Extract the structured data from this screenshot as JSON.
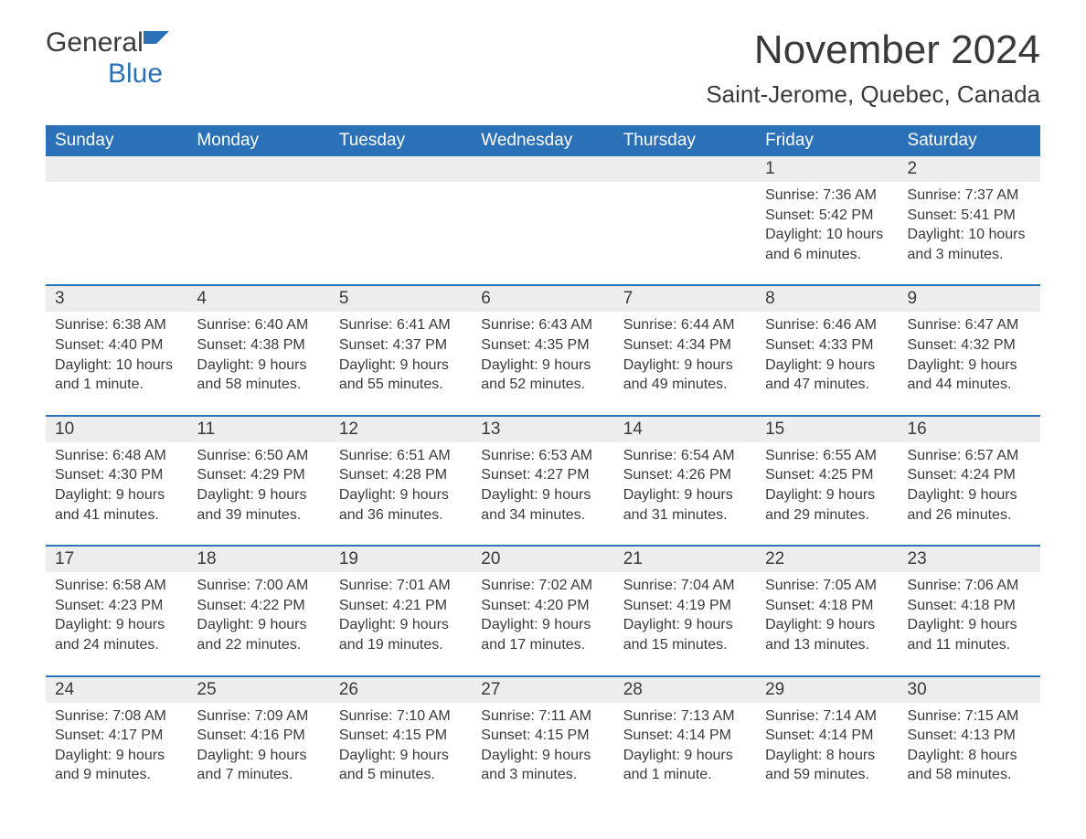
{
  "logo": {
    "text1": "General",
    "text2": "Blue",
    "icon_color": "#2a71b8",
    "text_color_main": "#3a3a3a",
    "text_color_accent": "#2a71b8"
  },
  "title": {
    "month_year": "November 2024",
    "location": "Saint-Jerome, Quebec, Canada",
    "title_fontsize": 44,
    "location_fontsize": 26
  },
  "colors": {
    "header_bg": "#2a71b8",
    "header_text": "#ffffff",
    "daynum_bg": "#ededed",
    "row_border": "#2a71b8",
    "body_text": "#3a3a3a",
    "page_bg": "#ffffff"
  },
  "typography": {
    "font_family": "Arial, Helvetica, sans-serif",
    "header_fontsize": 19,
    "daynum_fontsize": 19,
    "content_fontsize": 16
  },
  "calendar": {
    "columns": [
      "Sunday",
      "Monday",
      "Tuesday",
      "Wednesday",
      "Thursday",
      "Friday",
      "Saturday"
    ],
    "weeks": [
      [
        null,
        null,
        null,
        null,
        null,
        {
          "day": "1",
          "sunrise": "Sunrise: 7:36 AM",
          "sunset": "Sunset: 5:42 PM",
          "daylight": "Daylight: 10 hours and 6 minutes."
        },
        {
          "day": "2",
          "sunrise": "Sunrise: 7:37 AM",
          "sunset": "Sunset: 5:41 PM",
          "daylight": "Daylight: 10 hours and 3 minutes."
        }
      ],
      [
        {
          "day": "3",
          "sunrise": "Sunrise: 6:38 AM",
          "sunset": "Sunset: 4:40 PM",
          "daylight": "Daylight: 10 hours and 1 minute."
        },
        {
          "day": "4",
          "sunrise": "Sunrise: 6:40 AM",
          "sunset": "Sunset: 4:38 PM",
          "daylight": "Daylight: 9 hours and 58 minutes."
        },
        {
          "day": "5",
          "sunrise": "Sunrise: 6:41 AM",
          "sunset": "Sunset: 4:37 PM",
          "daylight": "Daylight: 9 hours and 55 minutes."
        },
        {
          "day": "6",
          "sunrise": "Sunrise: 6:43 AM",
          "sunset": "Sunset: 4:35 PM",
          "daylight": "Daylight: 9 hours and 52 minutes."
        },
        {
          "day": "7",
          "sunrise": "Sunrise: 6:44 AM",
          "sunset": "Sunset: 4:34 PM",
          "daylight": "Daylight: 9 hours and 49 minutes."
        },
        {
          "day": "8",
          "sunrise": "Sunrise: 6:46 AM",
          "sunset": "Sunset: 4:33 PM",
          "daylight": "Daylight: 9 hours and 47 minutes."
        },
        {
          "day": "9",
          "sunrise": "Sunrise: 6:47 AM",
          "sunset": "Sunset: 4:32 PM",
          "daylight": "Daylight: 9 hours and 44 minutes."
        }
      ],
      [
        {
          "day": "10",
          "sunrise": "Sunrise: 6:48 AM",
          "sunset": "Sunset: 4:30 PM",
          "daylight": "Daylight: 9 hours and 41 minutes."
        },
        {
          "day": "11",
          "sunrise": "Sunrise: 6:50 AM",
          "sunset": "Sunset: 4:29 PM",
          "daylight": "Daylight: 9 hours and 39 minutes."
        },
        {
          "day": "12",
          "sunrise": "Sunrise: 6:51 AM",
          "sunset": "Sunset: 4:28 PM",
          "daylight": "Daylight: 9 hours and 36 minutes."
        },
        {
          "day": "13",
          "sunrise": "Sunrise: 6:53 AM",
          "sunset": "Sunset: 4:27 PM",
          "daylight": "Daylight: 9 hours and 34 minutes."
        },
        {
          "day": "14",
          "sunrise": "Sunrise: 6:54 AM",
          "sunset": "Sunset: 4:26 PM",
          "daylight": "Daylight: 9 hours and 31 minutes."
        },
        {
          "day": "15",
          "sunrise": "Sunrise: 6:55 AM",
          "sunset": "Sunset: 4:25 PM",
          "daylight": "Daylight: 9 hours and 29 minutes."
        },
        {
          "day": "16",
          "sunrise": "Sunrise: 6:57 AM",
          "sunset": "Sunset: 4:24 PM",
          "daylight": "Daylight: 9 hours and 26 minutes."
        }
      ],
      [
        {
          "day": "17",
          "sunrise": "Sunrise: 6:58 AM",
          "sunset": "Sunset: 4:23 PM",
          "daylight": "Daylight: 9 hours and 24 minutes."
        },
        {
          "day": "18",
          "sunrise": "Sunrise: 7:00 AM",
          "sunset": "Sunset: 4:22 PM",
          "daylight": "Daylight: 9 hours and 22 minutes."
        },
        {
          "day": "19",
          "sunrise": "Sunrise: 7:01 AM",
          "sunset": "Sunset: 4:21 PM",
          "daylight": "Daylight: 9 hours and 19 minutes."
        },
        {
          "day": "20",
          "sunrise": "Sunrise: 7:02 AM",
          "sunset": "Sunset: 4:20 PM",
          "daylight": "Daylight: 9 hours and 17 minutes."
        },
        {
          "day": "21",
          "sunrise": "Sunrise: 7:04 AM",
          "sunset": "Sunset: 4:19 PM",
          "daylight": "Daylight: 9 hours and 15 minutes."
        },
        {
          "day": "22",
          "sunrise": "Sunrise: 7:05 AM",
          "sunset": "Sunset: 4:18 PM",
          "daylight": "Daylight: 9 hours and 13 minutes."
        },
        {
          "day": "23",
          "sunrise": "Sunrise: 7:06 AM",
          "sunset": "Sunset: 4:18 PM",
          "daylight": "Daylight: 9 hours and 11 minutes."
        }
      ],
      [
        {
          "day": "24",
          "sunrise": "Sunrise: 7:08 AM",
          "sunset": "Sunset: 4:17 PM",
          "daylight": "Daylight: 9 hours and 9 minutes."
        },
        {
          "day": "25",
          "sunrise": "Sunrise: 7:09 AM",
          "sunset": "Sunset: 4:16 PM",
          "daylight": "Daylight: 9 hours and 7 minutes."
        },
        {
          "day": "26",
          "sunrise": "Sunrise: 7:10 AM",
          "sunset": "Sunset: 4:15 PM",
          "daylight": "Daylight: 9 hours and 5 minutes."
        },
        {
          "day": "27",
          "sunrise": "Sunrise: 7:11 AM",
          "sunset": "Sunset: 4:15 PM",
          "daylight": "Daylight: 9 hours and 3 minutes."
        },
        {
          "day": "28",
          "sunrise": "Sunrise: 7:13 AM",
          "sunset": "Sunset: 4:14 PM",
          "daylight": "Daylight: 9 hours and 1 minute."
        },
        {
          "day": "29",
          "sunrise": "Sunrise: 7:14 AM",
          "sunset": "Sunset: 4:14 PM",
          "daylight": "Daylight: 8 hours and 59 minutes."
        },
        {
          "day": "30",
          "sunrise": "Sunrise: 7:15 AM",
          "sunset": "Sunset: 4:13 PM",
          "daylight": "Daylight: 8 hours and 58 minutes."
        }
      ]
    ]
  }
}
